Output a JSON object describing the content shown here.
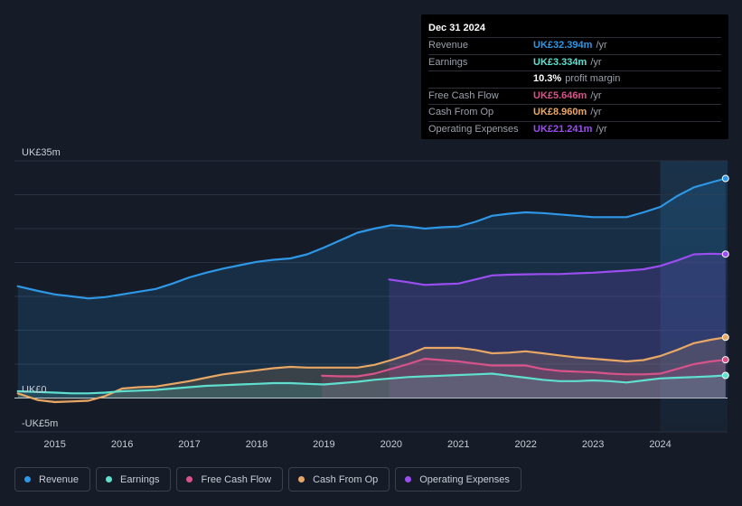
{
  "tooltip": {
    "date": "Dec 31 2024",
    "rows": [
      {
        "label": "Revenue",
        "value": "UK£32.394m",
        "unit": "/yr",
        "color": "#2e97e6"
      },
      {
        "label": "Earnings",
        "value": "UK£3.334m",
        "unit": "/yr",
        "color": "#5fe0cf"
      },
      {
        "label": "",
        "value": "10.3%",
        "unit": "profit margin",
        "color": "#ffffff"
      },
      {
        "label": "Free Cash Flow",
        "value": "UK£5.646m",
        "unit": "/yr",
        "color": "#d9538b"
      },
      {
        "label": "Cash From Op",
        "value": "UK£8.960m",
        "unit": "/yr",
        "color": "#e8a765"
      },
      {
        "label": "Operating Expenses",
        "value": "UK£21.241m",
        "unit": "/yr",
        "color": "#9a4ef0"
      }
    ]
  },
  "legend": [
    {
      "label": "Revenue",
      "color": "#2e97e6"
    },
    {
      "label": "Earnings",
      "color": "#5fe0cf"
    },
    {
      "label": "Free Cash Flow",
      "color": "#d9538b"
    },
    {
      "label": "Cash From Op",
      "color": "#e8a765"
    },
    {
      "label": "Operating Expenses",
      "color": "#9a4ef0"
    }
  ],
  "chart_data": {
    "type": "area",
    "title": "",
    "xlabel": "",
    "ylabel": "",
    "xlim": [
      2014.4,
      2025.0
    ],
    "ylim": [
      -5,
      35
    ],
    "y_tick_labels": [
      {
        "value": 35,
        "label": "UK£35m"
      },
      {
        "value": 0,
        "label": "UK£0"
      },
      {
        "value": -5,
        "label": "-UK£5m"
      }
    ],
    "x_ticks": [
      2015,
      2016,
      2017,
      2018,
      2019,
      2020,
      2021,
      2022,
      2023,
      2024
    ],
    "x_tick_labels": [
      "2015",
      "2016",
      "2017",
      "2018",
      "2019",
      "2020",
      "2021",
      "2022",
      "2023",
      "2024"
    ],
    "highlight_from": 2024.0,
    "series": [
      {
        "name": "Revenue",
        "color": "#2e97e6",
        "fill": true,
        "x": [
          2014.45,
          2014.75,
          2015.0,
          2015.25,
          2015.5,
          2015.75,
          2016.0,
          2016.25,
          2016.5,
          2016.75,
          2017.0,
          2017.25,
          2017.5,
          2017.75,
          2018.0,
          2018.25,
          2018.5,
          2018.75,
          2019.0,
          2019.25,
          2019.5,
          2019.75,
          2020.0,
          2020.25,
          2020.5,
          2020.75,
          2021.0,
          2021.25,
          2021.5,
          2021.75,
          2022.0,
          2022.25,
          2022.5,
          2022.75,
          2023.0,
          2023.25,
          2023.5,
          2023.75,
          2024.0,
          2024.25,
          2024.5,
          2024.75,
          2024.97
        ],
        "values": [
          16.5,
          15.8,
          15.3,
          15.0,
          14.7,
          14.9,
          15.3,
          15.7,
          16.1,
          16.9,
          17.8,
          18.5,
          19.1,
          19.6,
          20.1,
          20.4,
          20.6,
          21.2,
          22.2,
          23.3,
          24.4,
          25.0,
          25.5,
          25.3,
          25.0,
          25.2,
          25.3,
          26.0,
          26.9,
          27.2,
          27.4,
          27.3,
          27.1,
          26.9,
          26.7,
          26.7,
          26.7,
          27.4,
          28.2,
          29.8,
          31.1,
          31.8,
          32.394
        ]
      },
      {
        "name": "Operating Expenses",
        "color": "#9a4ef0",
        "fill": true,
        "x": [
          2019.97,
          2020.25,
          2020.5,
          2020.75,
          2021.0,
          2021.25,
          2021.5,
          2021.75,
          2022.0,
          2022.25,
          2022.5,
          2022.75,
          2023.0,
          2023.25,
          2023.5,
          2023.75,
          2024.0,
          2024.25,
          2024.5,
          2024.75,
          2024.97
        ],
        "values": [
          17.5,
          17.1,
          16.7,
          16.8,
          16.9,
          17.5,
          18.1,
          18.2,
          18.25,
          18.3,
          18.3,
          18.4,
          18.5,
          18.65,
          18.8,
          19.0,
          19.5,
          20.3,
          21.2,
          21.3,
          21.241
        ]
      },
      {
        "name": "Cash From Op",
        "color": "#e8a765",
        "fill": true,
        "x": [
          2014.45,
          2014.75,
          2015.0,
          2015.25,
          2015.5,
          2015.75,
          2016.0,
          2016.25,
          2016.5,
          2016.75,
          2017.0,
          2017.25,
          2017.5,
          2017.75,
          2018.0,
          2018.25,
          2018.5,
          2018.75,
          2019.0,
          2019.25,
          2019.5,
          2019.75,
          2020.0,
          2020.25,
          2020.5,
          2020.75,
          2021.0,
          2021.25,
          2021.5,
          2021.75,
          2022.0,
          2022.25,
          2022.5,
          2022.75,
          2023.0,
          2023.25,
          2023.5,
          2023.75,
          2024.0,
          2024.25,
          2024.5,
          2024.75,
          2024.97
        ],
        "values": [
          0.7,
          -0.3,
          -0.6,
          -0.5,
          -0.4,
          0.3,
          1.4,
          1.6,
          1.7,
          2.1,
          2.5,
          3.0,
          3.5,
          3.8,
          4.1,
          4.4,
          4.6,
          4.5,
          4.5,
          4.5,
          4.5,
          4.9,
          5.6,
          6.4,
          7.4,
          7.4,
          7.4,
          7.1,
          6.6,
          6.7,
          6.9,
          6.6,
          6.3,
          6.0,
          5.8,
          5.6,
          5.4,
          5.6,
          6.2,
          7.1,
          8.1,
          8.6,
          8.96
        ]
      },
      {
        "name": "Free Cash Flow",
        "color": "#d9538b",
        "fill": true,
        "x": [
          2018.97,
          2019.25,
          2019.5,
          2019.75,
          2020.0,
          2020.25,
          2020.5,
          2020.75,
          2021.0,
          2021.25,
          2021.5,
          2021.75,
          2022.0,
          2022.25,
          2022.5,
          2022.75,
          2023.0,
          2023.25,
          2023.5,
          2023.75,
          2024.0,
          2024.25,
          2024.5,
          2024.75,
          2024.97
        ],
        "values": [
          3.3,
          3.2,
          3.2,
          3.6,
          4.3,
          5.0,
          5.8,
          5.6,
          5.4,
          5.1,
          4.8,
          4.8,
          4.8,
          4.3,
          4.0,
          3.9,
          3.8,
          3.6,
          3.5,
          3.5,
          3.6,
          4.3,
          5.0,
          5.4,
          5.646
        ]
      },
      {
        "name": "Earnings",
        "color": "#5fe0cf",
        "fill": true,
        "x": [
          2014.45,
          2014.75,
          2015.0,
          2015.25,
          2015.5,
          2015.75,
          2016.0,
          2016.25,
          2016.5,
          2016.75,
          2017.0,
          2017.25,
          2017.5,
          2017.75,
          2018.0,
          2018.25,
          2018.5,
          2018.75,
          2019.0,
          2019.25,
          2019.5,
          2019.75,
          2020.0,
          2020.25,
          2020.5,
          2020.75,
          2021.0,
          2021.25,
          2021.5,
          2021.75,
          2022.0,
          2022.25,
          2022.5,
          2022.75,
          2023.0,
          2023.25,
          2023.5,
          2023.75,
          2024.0,
          2024.25,
          2024.5,
          2024.75,
          2024.97
        ],
        "values": [
          1.0,
          0.9,
          0.8,
          0.7,
          0.7,
          0.8,
          1.0,
          1.1,
          1.2,
          1.4,
          1.6,
          1.8,
          1.9,
          2.0,
          2.1,
          2.2,
          2.2,
          2.1,
          2.0,
          2.2,
          2.4,
          2.7,
          2.9,
          3.1,
          3.2,
          3.3,
          3.4,
          3.5,
          3.6,
          3.3,
          3.0,
          2.7,
          2.5,
          2.5,
          2.6,
          2.5,
          2.3,
          2.6,
          2.9,
          3.0,
          3.1,
          3.2,
          3.334
        ]
      }
    ]
  }
}
